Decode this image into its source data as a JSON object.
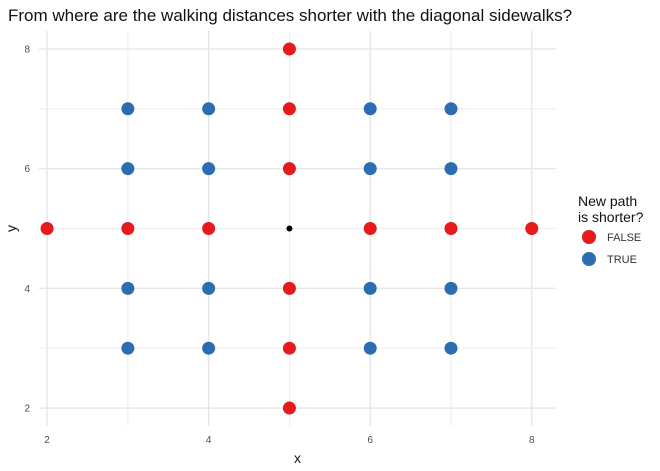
{
  "chart_data": {
    "type": "scatter",
    "title": "From where are the walking distances shorter with the diagonal sidewalks?",
    "xlabel": "x",
    "ylabel": "y",
    "xlim": [
      1.9,
      8.3
    ],
    "ylim": [
      1.7,
      8.3
    ],
    "x_ticks": [
      2,
      4,
      6,
      8
    ],
    "y_ticks": [
      2,
      4,
      6,
      8
    ],
    "minor_x_gridlines": [
      3,
      5,
      7
    ],
    "minor_y_gridlines": [
      3,
      5,
      7
    ],
    "grid": true,
    "legend": {
      "title_lines": [
        "New path",
        "is shorter?"
      ],
      "placement": "right",
      "entries": [
        {
          "label": "FALSE",
          "color": "#E41A1C"
        },
        {
          "label": "TRUE",
          "color": "#2C6DB2"
        }
      ]
    },
    "series": [
      {
        "key": "FALSE",
        "color": "#E41A1C",
        "points": [
          {
            "x": 5,
            "y": 8
          },
          {
            "x": 5,
            "y": 7
          },
          {
            "x": 5,
            "y": 6
          },
          {
            "x": 2,
            "y": 5
          },
          {
            "x": 3,
            "y": 5
          },
          {
            "x": 4,
            "y": 5
          },
          {
            "x": 6,
            "y": 5
          },
          {
            "x": 7,
            "y": 5
          },
          {
            "x": 8,
            "y": 5
          },
          {
            "x": 5,
            "y": 4
          },
          {
            "x": 5,
            "y": 3
          },
          {
            "x": 5,
            "y": 2
          }
        ]
      },
      {
        "key": "TRUE",
        "color": "#2C6DB2",
        "points": [
          {
            "x": 3,
            "y": 7
          },
          {
            "x": 4,
            "y": 7
          },
          {
            "x": 6,
            "y": 7
          },
          {
            "x": 7,
            "y": 7
          },
          {
            "x": 3,
            "y": 6
          },
          {
            "x": 4,
            "y": 6
          },
          {
            "x": 6,
            "y": 6
          },
          {
            "x": 7,
            "y": 6
          },
          {
            "x": 3,
            "y": 4
          },
          {
            "x": 4,
            "y": 4
          },
          {
            "x": 6,
            "y": 4
          },
          {
            "x": 7,
            "y": 4
          },
          {
            "x": 3,
            "y": 3
          },
          {
            "x": 4,
            "y": 3
          },
          {
            "x": 6,
            "y": 3
          },
          {
            "x": 7,
            "y": 3
          }
        ]
      }
    ],
    "origin_point": {
      "x": 5,
      "y": 5,
      "color": "#000000"
    }
  }
}
